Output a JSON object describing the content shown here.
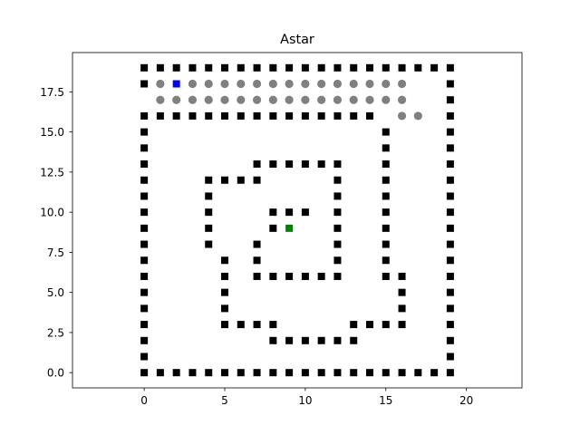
{
  "chart_data": {
    "type": "scatter",
    "title": "Astar",
    "xlabel": "",
    "ylabel": "",
    "xlim": [
      -4.45,
      23.45
    ],
    "ylim": [
      -0.95,
      19.95
    ],
    "xticks": [
      0,
      5,
      10,
      15,
      20
    ],
    "xtick_labels": [
      "0",
      "5",
      "10",
      "15",
      "20"
    ],
    "yticks": [
      0.0,
      2.5,
      5.0,
      7.5,
      10.0,
      12.5,
      15.0,
      17.5
    ],
    "ytick_labels": [
      "0.0",
      "2.5",
      "5.0",
      "7.5",
      "10.0",
      "12.5",
      "15.0",
      "17.5"
    ],
    "grid": false,
    "legend": false,
    "series": [
      {
        "marker": "square",
        "color": "#000000",
        "points": [
          [
            0,
            0
          ],
          [
            1,
            0
          ],
          [
            2,
            0
          ],
          [
            3,
            0
          ],
          [
            4,
            0
          ],
          [
            5,
            0
          ],
          [
            6,
            0
          ],
          [
            7,
            0
          ],
          [
            8,
            0
          ],
          [
            9,
            0
          ],
          [
            10,
            0
          ],
          [
            11,
            0
          ],
          [
            12,
            0
          ],
          [
            13,
            0
          ],
          [
            14,
            0
          ],
          [
            15,
            0
          ],
          [
            16,
            0
          ],
          [
            17,
            0
          ],
          [
            18,
            0
          ],
          [
            19,
            0
          ],
          [
            0,
            19
          ],
          [
            1,
            19
          ],
          [
            2,
            19
          ],
          [
            3,
            19
          ],
          [
            4,
            19
          ],
          [
            5,
            19
          ],
          [
            6,
            19
          ],
          [
            7,
            19
          ],
          [
            8,
            19
          ],
          [
            9,
            19
          ],
          [
            10,
            19
          ],
          [
            11,
            19
          ],
          [
            12,
            19
          ],
          [
            13,
            19
          ],
          [
            14,
            19
          ],
          [
            15,
            19
          ],
          [
            16,
            19
          ],
          [
            17,
            19
          ],
          [
            18,
            19
          ],
          [
            19,
            19
          ],
          [
            0,
            1
          ],
          [
            0,
            2
          ],
          [
            0,
            3
          ],
          [
            0,
            4
          ],
          [
            0,
            5
          ],
          [
            0,
            6
          ],
          [
            0,
            7
          ],
          [
            0,
            8
          ],
          [
            0,
            9
          ],
          [
            0,
            10
          ],
          [
            0,
            11
          ],
          [
            0,
            12
          ],
          [
            0,
            13
          ],
          [
            0,
            14
          ],
          [
            0,
            15
          ],
          [
            0,
            16
          ],
          [
            0,
            18
          ],
          [
            19,
            1
          ],
          [
            19,
            2
          ],
          [
            19,
            3
          ],
          [
            19,
            4
          ],
          [
            19,
            5
          ],
          [
            19,
            6
          ],
          [
            19,
            7
          ],
          [
            19,
            8
          ],
          [
            19,
            9
          ],
          [
            19,
            10
          ],
          [
            19,
            11
          ],
          [
            19,
            12
          ],
          [
            19,
            13
          ],
          [
            19,
            14
          ],
          [
            19,
            15
          ],
          [
            19,
            16
          ],
          [
            19,
            17
          ],
          [
            19,
            18
          ],
          [
            1,
            16
          ],
          [
            2,
            16
          ],
          [
            3,
            16
          ],
          [
            4,
            16
          ],
          [
            5,
            16
          ],
          [
            6,
            16
          ],
          [
            7,
            16
          ],
          [
            8,
            16
          ],
          [
            9,
            16
          ],
          [
            10,
            16
          ],
          [
            11,
            16
          ],
          [
            12,
            16
          ],
          [
            13,
            16
          ],
          [
            14,
            16
          ],
          [
            15,
            15
          ],
          [
            15,
            14
          ],
          [
            15,
            13
          ],
          [
            15,
            12
          ],
          [
            15,
            11
          ],
          [
            15,
            10
          ],
          [
            15,
            9
          ],
          [
            15,
            8
          ],
          [
            15,
            7
          ],
          [
            15,
            6
          ],
          [
            16,
            6
          ],
          [
            16,
            5
          ],
          [
            16,
            4
          ],
          [
            16,
            3
          ],
          [
            13,
            3
          ],
          [
            14,
            3
          ],
          [
            15,
            3
          ],
          [
            8,
            2
          ],
          [
            9,
            2
          ],
          [
            10,
            2
          ],
          [
            11,
            2
          ],
          [
            12,
            2
          ],
          [
            13,
            2
          ],
          [
            5,
            3
          ],
          [
            6,
            3
          ],
          [
            7,
            3
          ],
          [
            8,
            3
          ],
          [
            5,
            4
          ],
          [
            5,
            5
          ],
          [
            5,
            6
          ],
          [
            5,
            7
          ],
          [
            4,
            8
          ],
          [
            4,
            9
          ],
          [
            4,
            10
          ],
          [
            4,
            11
          ],
          [
            4,
            12
          ],
          [
            5,
            12
          ],
          [
            6,
            12
          ],
          [
            7,
            12
          ],
          [
            7,
            13
          ],
          [
            8,
            13
          ],
          [
            9,
            13
          ],
          [
            10,
            13
          ],
          [
            11,
            13
          ],
          [
            12,
            13
          ],
          [
            12,
            12
          ],
          [
            12,
            11
          ],
          [
            12,
            10
          ],
          [
            12,
            9
          ],
          [
            12,
            8
          ],
          [
            12,
            7
          ],
          [
            12,
            6
          ],
          [
            7,
            6
          ],
          [
            8,
            6
          ],
          [
            9,
            6
          ],
          [
            10,
            6
          ],
          [
            11,
            6
          ],
          [
            7,
            7
          ],
          [
            7,
            8
          ],
          [
            8,
            9
          ],
          [
            8,
            10
          ],
          [
            9,
            10
          ],
          [
            10,
            10
          ]
        ]
      },
      {
        "marker": "circle",
        "color": "#808080",
        "points": [
          [
            1,
            18
          ],
          [
            3,
            18
          ],
          [
            4,
            18
          ],
          [
            5,
            18
          ],
          [
            6,
            18
          ],
          [
            7,
            18
          ],
          [
            8,
            18
          ],
          [
            9,
            18
          ],
          [
            10,
            18
          ],
          [
            11,
            18
          ],
          [
            12,
            18
          ],
          [
            13,
            18
          ],
          [
            14,
            18
          ],
          [
            15,
            18
          ],
          [
            16,
            18
          ],
          [
            1,
            17
          ],
          [
            2,
            17
          ],
          [
            3,
            17
          ],
          [
            4,
            17
          ],
          [
            5,
            17
          ],
          [
            6,
            17
          ],
          [
            7,
            17
          ],
          [
            8,
            17
          ],
          [
            9,
            17
          ],
          [
            10,
            17
          ],
          [
            11,
            17
          ],
          [
            12,
            17
          ],
          [
            13,
            17
          ],
          [
            14,
            17
          ],
          [
            15,
            17
          ],
          [
            16,
            17
          ],
          [
            16,
            16
          ],
          [
            17,
            16
          ]
        ]
      },
      {
        "marker": "square",
        "color": "#0000ff",
        "points": [
          [
            2,
            18
          ]
        ]
      },
      {
        "marker": "square",
        "color": "#008000",
        "points": [
          [
            9,
            9
          ]
        ]
      }
    ]
  }
}
